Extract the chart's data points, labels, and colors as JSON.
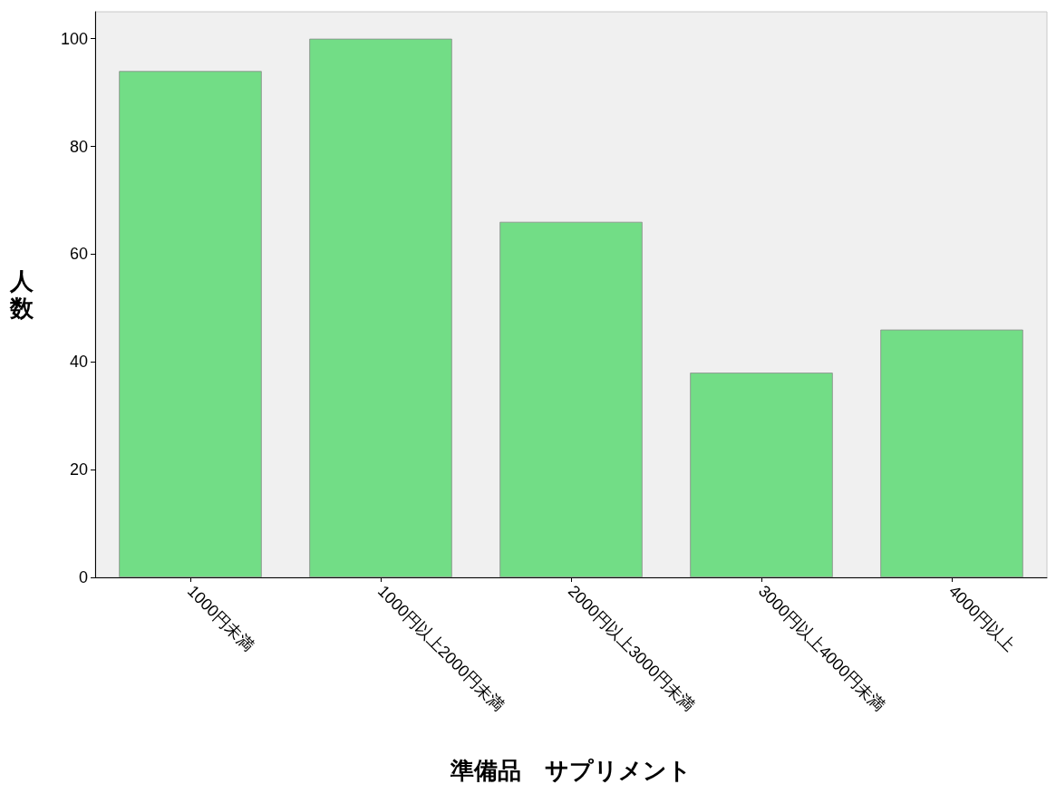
{
  "chart_data": {
    "type": "bar",
    "xlabel": "準備品　サプリメント",
    "ylabel": "人数",
    "categories": [
      "1000円未満",
      "1000円以上2000円未満",
      "2000円以上3000円未満",
      "3000円以上4000円未満",
      "4000円以上"
    ],
    "values": [
      94,
      100,
      66,
      38,
      46
    ],
    "color": "#72dd86",
    "ylim": [
      0,
      105
    ],
    "yticks": [
      0,
      20,
      40,
      60,
      80,
      100
    ],
    "grid": false
  }
}
